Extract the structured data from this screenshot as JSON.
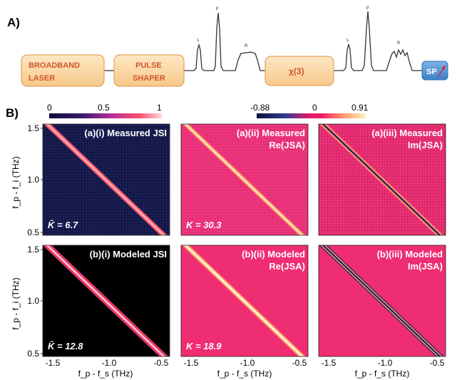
{
  "section_a": {
    "label": "A)",
    "boxes": {
      "broadband_laser": [
        "BROADBAND",
        "LASER"
      ],
      "pulse_shaper": [
        "PULSE",
        "SHAPER"
      ],
      "chi3": "χ(3)",
      "sp": "SP"
    },
    "peak_labels": {
      "s": "s",
      "p": "p",
      "r": "R"
    }
  },
  "section_b": {
    "label": "B)",
    "colorbar_jsi": {
      "min": "0",
      "mid": "0.5",
      "max": "1",
      "colors": [
        "#0d0e3a",
        "#3c1a6b",
        "#b4309a",
        "#ff4d6d",
        "#ffd8d8"
      ]
    },
    "colorbar_jsa": {
      "min": "-0.88",
      "mid": "0",
      "max": "0.91",
      "colors": [
        "#0d0e3a",
        "#2b3a8f",
        "#e01a6a",
        "#f02060",
        "#ff9a70",
        "#fff2c0"
      ]
    },
    "y_axis_label": "f_p - f_i (THz)",
    "x_axis_label": "f_p - f_s (THz)",
    "y_ticks": [
      "1.5",
      "1.0",
      "0.5"
    ],
    "x_ticks": [
      "-1.5",
      "-1.0",
      "-0.5"
    ],
    "panels": [
      {
        "id": "a-i",
        "title": [
          "(a)(i) Measured JSI"
        ],
        "metric": "K̃ = 6.7"
      },
      {
        "id": "a-ii",
        "title": [
          "(a)(ii) Measured",
          "Re(JSA)"
        ],
        "metric": "K = 30.3"
      },
      {
        "id": "a-iii",
        "title": [
          "(a)(iii) Measured",
          "Im(JSA)"
        ],
        "metric": ""
      },
      {
        "id": "b-i",
        "title": [
          "(b)(i) Modeled JSI"
        ],
        "metric": "K̃ = 12.8"
      },
      {
        "id": "b-ii",
        "title": [
          "(b)(ii) Modeled",
          "Re(JSA)"
        ],
        "metric": "K = 18.9"
      },
      {
        "id": "b-iii",
        "title": [
          "(b)(iii) Modeled",
          "Im(JSA)"
        ],
        "metric": ""
      }
    ]
  }
}
